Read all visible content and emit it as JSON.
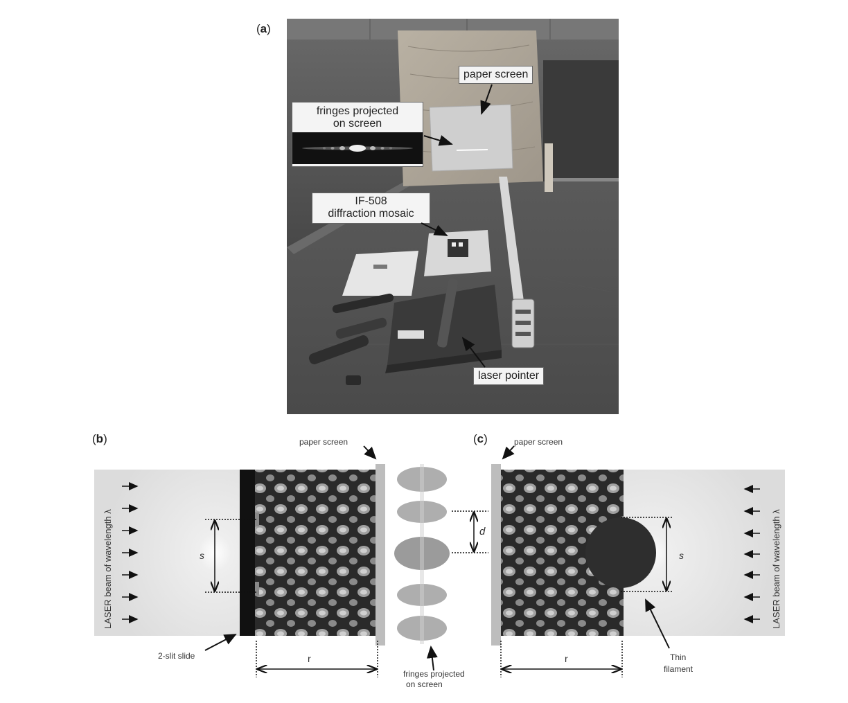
{
  "panels": {
    "a": {
      "label": "a"
    },
    "b": {
      "label": "b"
    },
    "c": {
      "label": "c"
    }
  },
  "photo": {
    "callouts": {
      "paper_screen": "paper screen",
      "fringes_line1": "fringes projected",
      "fringes_line2": "on screen",
      "mosaic_line1": "IF-508",
      "mosaic_line2": "diffraction mosaic",
      "laser_pointer": "laser pointer"
    }
  },
  "diagram_b": {
    "paper_screen": "paper screen",
    "beam_label": "LASER beam of wavelength λ",
    "s_label": "s",
    "r_label": "r",
    "slide_label": "2-slit slide"
  },
  "fringes": {
    "d_label": "d",
    "caption_line1": "fringes projected",
    "caption_line2": "on screen"
  },
  "diagram_c": {
    "paper_screen": "paper screen",
    "beam_label": "LASER beam of wavelength λ",
    "s_label": "s",
    "r_label": "r",
    "filament_line1": "Thin",
    "filament_line2": "filament"
  },
  "colors": {
    "dark_table": "#4a4a4a",
    "screen_gray": "#bdbdbd",
    "beam_fill": "#f0f0f0",
    "obstacle": "#2e2e2e"
  }
}
